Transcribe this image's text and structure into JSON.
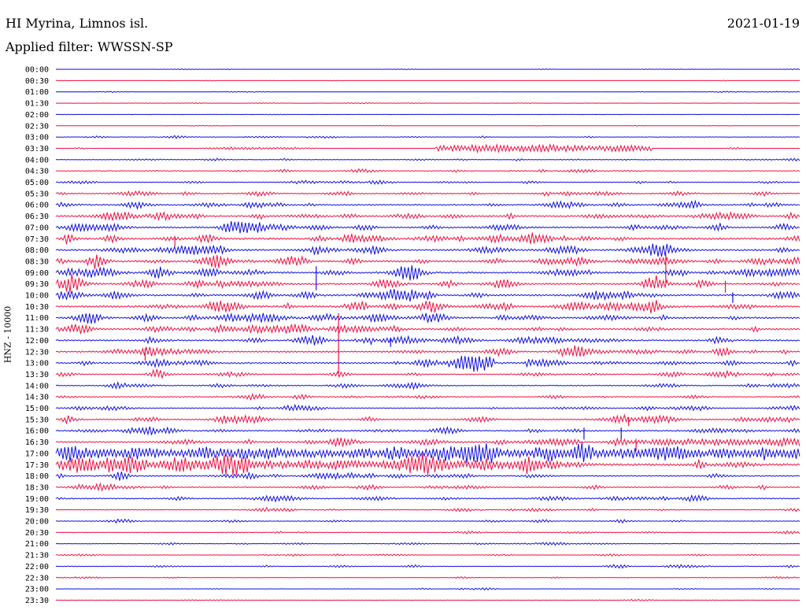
{
  "header": {
    "station": "HI Myrina, Limnos isl.",
    "filter": "Applied filter: WWSSN-SP",
    "date": "2021-01-19",
    "channel": "HNZ - 10000"
  },
  "colors": {
    "blue": "#1010e0",
    "red": "#ee1040"
  },
  "chart_data": {
    "type": "helicorder",
    "title": "HI Myrina, Limnos isl.",
    "subtitle": "Applied filter: WWSSN-SP",
    "ylabel": "HNZ - 10000",
    "rows": [
      {
        "time": "00:00",
        "color": "blue",
        "noise": 0.3
      },
      {
        "time": "00:30",
        "color": "red",
        "noise": 0.2
      },
      {
        "time": "01:00",
        "color": "blue",
        "noise": 0.3
      },
      {
        "time": "01:30",
        "color": "red",
        "noise": 0.3
      },
      {
        "time": "02:00",
        "color": "blue",
        "noise": 0.2
      },
      {
        "time": "02:30",
        "color": "red",
        "noise": 0.2
      },
      {
        "time": "03:00",
        "color": "blue",
        "noise": 0.6
      },
      {
        "time": "03:30",
        "color": "red",
        "noise": 0.6
      },
      {
        "time": "04:00",
        "color": "blue",
        "noise": 0.7
      },
      {
        "time": "04:30",
        "color": "red",
        "noise": 0.9
      },
      {
        "time": "05:00",
        "color": "blue",
        "noise": 1.0
      },
      {
        "time": "05:30",
        "color": "red",
        "noise": 1.4
      },
      {
        "time": "06:00",
        "color": "blue",
        "noise": 1.6
      },
      {
        "time": "06:30",
        "color": "red",
        "noise": 2.0
      },
      {
        "time": "07:00",
        "color": "blue",
        "noise": 2.0
      },
      {
        "time": "07:30",
        "color": "red",
        "noise": 2.4
      },
      {
        "time": "08:00",
        "color": "blue",
        "noise": 2.2
      },
      {
        "time": "08:30",
        "color": "red",
        "noise": 2.3
      },
      {
        "time": "09:00",
        "color": "blue",
        "noise": 2.2
      },
      {
        "time": "09:30",
        "color": "red",
        "noise": 2.2
      },
      {
        "time": "10:00",
        "color": "blue",
        "noise": 2.3
      },
      {
        "time": "10:30",
        "color": "red",
        "noise": 2.4
      },
      {
        "time": "11:00",
        "color": "blue",
        "noise": 2.2
      },
      {
        "time": "11:30",
        "color": "red",
        "noise": 2.2
      },
      {
        "time": "12:00",
        "color": "blue",
        "noise": 2.0
      },
      {
        "time": "12:30",
        "color": "red",
        "noise": 1.9
      },
      {
        "time": "13:00",
        "color": "blue",
        "noise": 2.0
      },
      {
        "time": "13:30",
        "color": "red",
        "noise": 1.4
      },
      {
        "time": "14:00",
        "color": "blue",
        "noise": 1.2
      },
      {
        "time": "14:30",
        "color": "red",
        "noise": 1.1
      },
      {
        "time": "15:00",
        "color": "blue",
        "noise": 1.3
      },
      {
        "time": "15:30",
        "color": "red",
        "noise": 1.6
      },
      {
        "time": "16:00",
        "color": "blue",
        "noise": 1.6
      },
      {
        "time": "16:30",
        "color": "red",
        "noise": 1.9
      },
      {
        "time": "17:00",
        "color": "blue",
        "noise": 3.0
      },
      {
        "time": "17:30",
        "color": "red",
        "noise": 2.8
      },
      {
        "time": "18:00",
        "color": "blue",
        "noise": 1.6
      },
      {
        "time": "18:30",
        "color": "red",
        "noise": 1.5
      },
      {
        "time": "19:00",
        "color": "blue",
        "noise": 1.4
      },
      {
        "time": "19:30",
        "color": "red",
        "noise": 0.9
      },
      {
        "time": "20:00",
        "color": "blue",
        "noise": 0.8
      },
      {
        "time": "20:30",
        "color": "red",
        "noise": 0.7
      },
      {
        "time": "21:00",
        "color": "blue",
        "noise": 0.6
      },
      {
        "time": "21:30",
        "color": "red",
        "noise": 0.6
      },
      {
        "time": "22:00",
        "color": "blue",
        "noise": 0.8
      },
      {
        "time": "22:30",
        "color": "red",
        "noise": 0.5
      },
      {
        "time": "23:00",
        "color": "blue",
        "noise": 0.4
      },
      {
        "time": "23:30",
        "color": "red",
        "noise": 0.4
      }
    ],
    "events": [
      {
        "time": "03:30",
        "position": 0.51,
        "length": 0.29,
        "amplitude": 3.5,
        "kind": "burst"
      },
      {
        "time": "09:00",
        "position": 0.35,
        "amplitude": 16,
        "kind": "spike"
      },
      {
        "time": "08:30",
        "position": 0.82,
        "amplitude": 20,
        "kind": "spike"
      },
      {
        "time": "11:30",
        "position": 0.38,
        "amplitude": 40,
        "kind": "spike"
      },
      {
        "time": "12:00",
        "position": 0.45,
        "amplitude": 6,
        "kind": "spike"
      },
      {
        "time": "12:30",
        "position": 0.12,
        "amplitude": 8,
        "kind": "spike"
      },
      {
        "time": "13:00",
        "position": 0.56,
        "amplitude": 6,
        "kind": "burst"
      },
      {
        "time": "09:30",
        "position": 0.9,
        "amplitude": 8,
        "kind": "spike"
      },
      {
        "time": "15:30",
        "position": 0.77,
        "amplitude": 6,
        "kind": "spike"
      },
      {
        "time": "16:00",
        "position": 0.71,
        "amplitude": 8,
        "kind": "spike"
      },
      {
        "time": "16:00",
        "position": 0.76,
        "amplitude": 8,
        "kind": "spike"
      },
      {
        "time": "16:30",
        "position": 0.78,
        "amplitude": 8,
        "kind": "spike"
      },
      {
        "time": "16:30",
        "position": 0.8,
        "length": 0.2,
        "amplitude": 3,
        "kind": "burst"
      },
      {
        "time": "17:30",
        "position": 0.0,
        "length": 0.64,
        "amplitude": 3.5,
        "kind": "burst"
      },
      {
        "time": "17:00",
        "position": 0.0,
        "length": 1.0,
        "amplitude": 3.5,
        "kind": "burst"
      },
      {
        "time": "07:30",
        "position": 0.16,
        "amplitude": 7,
        "kind": "spike"
      },
      {
        "time": "10:00",
        "position": 0.91,
        "amplitude": 7,
        "kind": "spike"
      }
    ]
  }
}
